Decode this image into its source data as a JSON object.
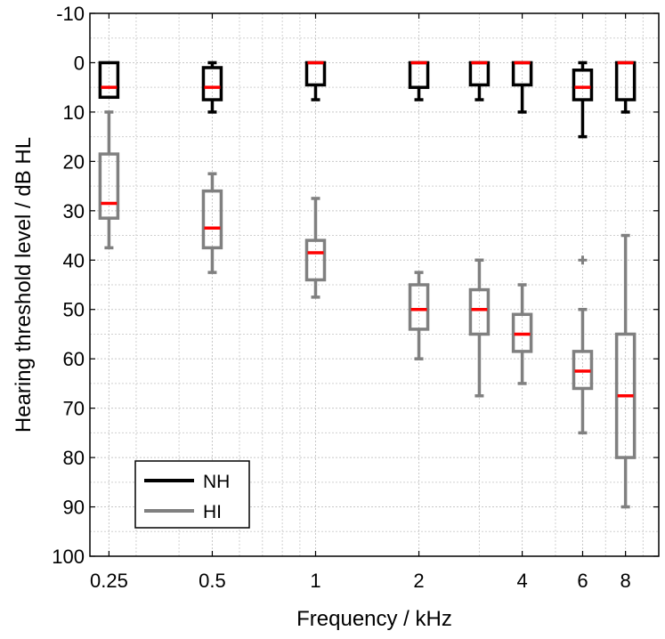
{
  "chart_data": {
    "type": "box",
    "title": "",
    "xlabel": "Frequency / kHz",
    "ylabel": "Hearing threshold level / dB HL",
    "x_scale": "log",
    "xlim": [
      0.22,
      10
    ],
    "ylim": [
      100,
      -10
    ],
    "y_reversed": true,
    "grid": true,
    "x_ticks": [
      {
        "value": 0.25,
        "label": "0.25"
      },
      {
        "value": 0.5,
        "label": "0.5"
      },
      {
        "value": 1,
        "label": "1"
      },
      {
        "value": 2,
        "label": "2"
      },
      {
        "value": 4,
        "label": "4"
      },
      {
        "value": 6,
        "label": "6"
      },
      {
        "value": 8,
        "label": "8"
      }
    ],
    "x_minor_grid": [
      0.3,
      0.4,
      0.6,
      0.7,
      0.8,
      0.9,
      3,
      5,
      7,
      9
    ],
    "y_ticks": [
      {
        "value": -10,
        "label": "-10"
      },
      {
        "value": 0,
        "label": "0"
      },
      {
        "value": 10,
        "label": "10"
      },
      {
        "value": 20,
        "label": "20"
      },
      {
        "value": 30,
        "label": "30"
      },
      {
        "value": 40,
        "label": "40"
      },
      {
        "value": 50,
        "label": "50"
      },
      {
        "value": 60,
        "label": "60"
      },
      {
        "value": 70,
        "label": "70"
      },
      {
        "value": 80,
        "label": "80"
      },
      {
        "value": 90,
        "label": "90"
      },
      {
        "value": 100,
        "label": "100"
      }
    ],
    "y_minor_grid": [
      -5,
      5,
      15,
      25,
      35,
      45,
      55,
      65,
      75,
      85,
      95
    ],
    "legend": {
      "position": "bottom-left",
      "entries": [
        {
          "name": "NH",
          "color": "#000000"
        },
        {
          "name": "HI",
          "color": "#808080"
        }
      ]
    },
    "median_color": "#ff0000",
    "series": [
      {
        "name": "NH",
        "color": "#000000",
        "boxes": [
          {
            "freq": 0.25,
            "whisker_low": 0,
            "q1": 0,
            "median": 5,
            "q3": 7,
            "whisker_high": 7,
            "outliers": []
          },
          {
            "freq": 0.5,
            "whisker_low": 0,
            "q1": 1,
            "median": 5,
            "q3": 7.5,
            "whisker_high": 10,
            "outliers": []
          },
          {
            "freq": 1,
            "whisker_low": 0,
            "q1": 0,
            "median": 0,
            "q3": 4.5,
            "whisker_high": 7.5,
            "outliers": []
          },
          {
            "freq": 2,
            "whisker_low": 0,
            "q1": 0,
            "median": 0,
            "q3": 5,
            "whisker_high": 7.5,
            "outliers": []
          },
          {
            "freq": 3,
            "whisker_low": 0,
            "q1": 0,
            "median": 0,
            "q3": 4.5,
            "whisker_high": 7.5,
            "outliers": []
          },
          {
            "freq": 4,
            "whisker_low": 0,
            "q1": 0,
            "median": 0,
            "q3": 4.5,
            "whisker_high": 10,
            "outliers": []
          },
          {
            "freq": 6,
            "whisker_low": 0,
            "q1": 1.5,
            "median": 5,
            "q3": 7.5,
            "whisker_high": 15,
            "outliers": []
          },
          {
            "freq": 8,
            "whisker_low": 0,
            "q1": 0,
            "median": 0,
            "q3": 7.5,
            "whisker_high": 10,
            "outliers": []
          }
        ]
      },
      {
        "name": "HI",
        "color": "#808080",
        "boxes": [
          {
            "freq": 0.25,
            "whisker_low": 10,
            "q1": 18.5,
            "median": 28.5,
            "q3": 31.5,
            "whisker_high": 37.5,
            "outliers": []
          },
          {
            "freq": 0.5,
            "whisker_low": 22.5,
            "q1": 26,
            "median": 33.5,
            "q3": 37.5,
            "whisker_high": 42.5,
            "outliers": []
          },
          {
            "freq": 1,
            "whisker_low": 27.5,
            "q1": 36,
            "median": 38.5,
            "q3": 44,
            "whisker_high": 47.5,
            "outliers": []
          },
          {
            "freq": 2,
            "whisker_low": 42.5,
            "q1": 45,
            "median": 50,
            "q3": 54,
            "whisker_high": 60,
            "outliers": []
          },
          {
            "freq": 3,
            "whisker_low": 40,
            "q1": 46,
            "median": 50,
            "q3": 55,
            "whisker_high": 67.5,
            "outliers": []
          },
          {
            "freq": 4,
            "whisker_low": 45,
            "q1": 51,
            "median": 55,
            "q3": 58.5,
            "whisker_high": 65,
            "outliers": []
          },
          {
            "freq": 6,
            "whisker_low": 50,
            "q1": 58.5,
            "median": 62.5,
            "q3": 66,
            "whisker_high": 75,
            "outliers": [
              40
            ]
          },
          {
            "freq": 8,
            "whisker_low": 35,
            "q1": 55,
            "median": 67.5,
            "q3": 80,
            "whisker_high": 90,
            "outliers": []
          }
        ]
      }
    ]
  }
}
